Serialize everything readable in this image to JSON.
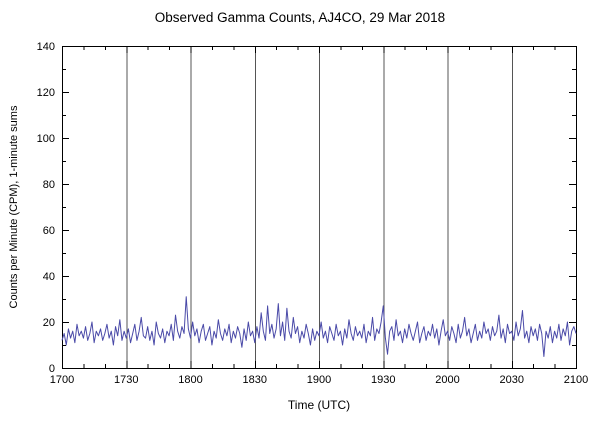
{
  "chart_data": {
    "type": "line",
    "title": "Observed Gamma Counts, AJ4CO, 29 Mar 2018",
    "xlabel": "Time (UTC)",
    "ylabel": "Counts per Minute (CPM), 1-minute sums",
    "x_major_ticks": [
      "1700",
      "1730",
      "1800",
      "1830",
      "1900",
      "1930",
      "2000",
      "2030",
      "2100"
    ],
    "y_major_ticks": [
      0,
      20,
      40,
      60,
      80,
      100,
      120,
      140
    ],
    "xlim_minutes": [
      0,
      240
    ],
    "x_minor_step_minutes": 10,
    "x_major_step_minutes": 30,
    "y_minor_step": 10,
    "ylim": [
      0,
      140
    ],
    "sample_interval_minutes": 1,
    "line_color": "#4a4aa8",
    "grid_color": "#555555",
    "axis_color": "#000000",
    "values": [
      12,
      15,
      10,
      17,
      13,
      16,
      11,
      19,
      14,
      16,
      13,
      18,
      12,
      15,
      20,
      11,
      16,
      14,
      17,
      12,
      15,
      19,
      13,
      16,
      10,
      18,
      14,
      21,
      12,
      16,
      13,
      17,
      11,
      15,
      19,
      12,
      16,
      22,
      14,
      13,
      18,
      12,
      16,
      10,
      20,
      15,
      13,
      17,
      11,
      16,
      14,
      19,
      12,
      23,
      16,
      13,
      18,
      15,
      31,
      17,
      13,
      20,
      14,
      17,
      11,
      16,
      19,
      12,
      15,
      18,
      10,
      16,
      13,
      21,
      15,
      12,
      17,
      14,
      19,
      11,
      16,
      13,
      18,
      15,
      9,
      17,
      12,
      20,
      14,
      16,
      11,
      18,
      13,
      24,
      16,
      12,
      27,
      15,
      19,
      13,
      17,
      28,
      14,
      20,
      12,
      26,
      16,
      13,
      22,
      15,
      18,
      11,
      16,
      13,
      19,
      15,
      10,
      17,
      12,
      16,
      14,
      20,
      13,
      16,
      11,
      18,
      15,
      12,
      19,
      14,
      16,
      10,
      17,
      13,
      21,
      15,
      12,
      18,
      14,
      16,
      13,
      19,
      11,
      16,
      14,
      22,
      12,
      17,
      15,
      20,
      27,
      13,
      6,
      16,
      18,
      12,
      21,
      14,
      16,
      11,
      17,
      13,
      19,
      15,
      12,
      16,
      20,
      11,
      15,
      18,
      12,
      16,
      14,
      19,
      13,
      17,
      10,
      16,
      21,
      14,
      16,
      12,
      18,
      15,
      11,
      19,
      13,
      16,
      22,
      14,
      17,
      11,
      15,
      19,
      12,
      16,
      13,
      20,
      15,
      17,
      12,
      18,
      14,
      16,
      23,
      13,
      17,
      11,
      19,
      15,
      16,
      12,
      20,
      14,
      17,
      25,
      13,
      16,
      11,
      18,
      14,
      17,
      12,
      19,
      15,
      5,
      16,
      13,
      18,
      11,
      16,
      13,
      19,
      12,
      17,
      14,
      20,
      10,
      16,
      18,
      15
    ]
  }
}
